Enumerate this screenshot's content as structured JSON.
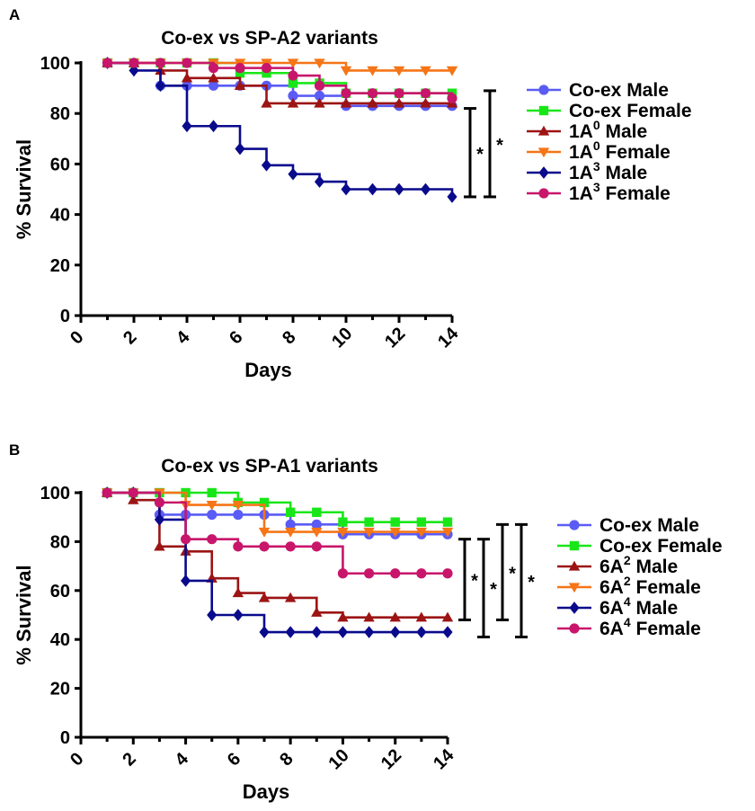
{
  "chart_data": [
    {
      "panel_label": "A",
      "type": "line",
      "step": true,
      "title": "Co-ex vs SP-A2 variants",
      "xlabel": "Days",
      "ylabel": "% Survival",
      "xlim": [
        0,
        14
      ],
      "ylim": [
        0,
        100
      ],
      "xticks": [
        "0",
        "2",
        "4",
        "6",
        "8",
        "10",
        "12",
        "14"
      ],
      "yticks": [
        "0",
        "20",
        "40",
        "60",
        "80",
        "100"
      ],
      "grid": false,
      "legend_position": "right",
      "x": [
        1,
        2,
        3,
        4,
        5,
        6,
        7,
        8,
        9,
        10,
        11,
        12,
        13,
        14
      ],
      "series": [
        {
          "name": "Co-ex Male",
          "base": "Co-ex",
          "sup": "",
          "rest": " Male",
          "color": "#5a5cf5",
          "marker": "circle",
          "values": [
            100,
            100,
            91,
            91,
            91,
            91,
            91,
            87,
            87,
            83,
            83,
            83,
            83,
            83
          ]
        },
        {
          "name": "Co-ex Female",
          "base": "Co-ex",
          "sup": "",
          "rest": " Female",
          "color": "#19e619",
          "marker": "square",
          "values": [
            100,
            100,
            100,
            100,
            100,
            96,
            96,
            92,
            92,
            88,
            88,
            88,
            88,
            88
          ]
        },
        {
          "name": "1A0 Male",
          "base": "1A",
          "sup": "0",
          "rest": " Male",
          "color": "#9c1414",
          "marker": "triangle-up",
          "values": [
            100,
            100,
            97,
            94,
            94,
            91,
            84,
            84,
            84,
            84,
            84,
            84,
            84,
            84
          ]
        },
        {
          "name": "1A0 Female",
          "base": "1A",
          "sup": "0",
          "rest": " Female",
          "color": "#f57517",
          "marker": "triangle-down",
          "values": [
            100,
            100,
            100,
            100,
            100,
            100,
            100,
            100,
            100,
            97,
            97,
            97,
            97,
            97
          ]
        },
        {
          "name": "1A3 Male",
          "base": "1A",
          "sup": "3",
          "rest": " Male",
          "color": "#0a0a8c",
          "marker": "diamond",
          "values": [
            100,
            97,
            91,
            75,
            75,
            66,
            59.5,
            56,
            53,
            50,
            50,
            50,
            50,
            47
          ]
        },
        {
          "name": "1A3 Female",
          "base": "1A",
          "sup": "3",
          "rest": " Female",
          "color": "#c8166b",
          "marker": "circle",
          "values": [
            100,
            100,
            100,
            100,
            98,
            98,
            98,
            95,
            91,
            88,
            88,
            88,
            88,
            86
          ]
        }
      ],
      "significance": [
        {
          "label": "*",
          "y_low": 47,
          "y_high": 82
        },
        {
          "label": "*",
          "y_low": 47,
          "y_high": 89
        }
      ]
    },
    {
      "panel_label": "B",
      "type": "line",
      "step": true,
      "title": "Co-ex vs SP-A1 variants",
      "xlabel": "Days",
      "ylabel": "% Survival",
      "xlim": [
        0,
        14
      ],
      "ylim": [
        0,
        100
      ],
      "xticks": [
        "0",
        "2",
        "4",
        "6",
        "8",
        "10",
        "12",
        "14"
      ],
      "yticks": [
        "0",
        "20",
        "40",
        "60",
        "80",
        "100"
      ],
      "grid": false,
      "legend_position": "right",
      "x": [
        1,
        2,
        3,
        4,
        5,
        6,
        7,
        8,
        9,
        10,
        11,
        12,
        13,
        14
      ],
      "series": [
        {
          "name": "Co-ex Male",
          "base": "Co-ex",
          "sup": "",
          "rest": " Male",
          "color": "#5a5cf5",
          "marker": "circle",
          "values": [
            100,
            100,
            91,
            91,
            91,
            91,
            91,
            87,
            87,
            83,
            83,
            83,
            83,
            83
          ]
        },
        {
          "name": "Co-ex Female",
          "base": "Co-ex",
          "sup": "",
          "rest": " Female",
          "color": "#19e619",
          "marker": "square",
          "values": [
            100,
            100,
            100,
            100,
            100,
            96,
            96,
            92,
            92,
            88,
            88,
            88,
            88,
            88
          ]
        },
        {
          "name": "6A2 Male",
          "base": "6A",
          "sup": "2",
          "rest": " Male",
          "color": "#9c1414",
          "marker": "triangle-up",
          "values": [
            100,
            97,
            78,
            76,
            65,
            59,
            57,
            57,
            51,
            49,
            49,
            49,
            49,
            49
          ]
        },
        {
          "name": "6A2 Female",
          "base": "6A",
          "sup": "2",
          "rest": " Female",
          "color": "#f57517",
          "marker": "triangle-down",
          "values": [
            100,
            100,
            100,
            95,
            95,
            95,
            84,
            84,
            84,
            84,
            84,
            84,
            84,
            84
          ]
        },
        {
          "name": "6A4 Male",
          "base": "6A",
          "sup": "4",
          "rest": " Male",
          "color": "#0a0a8c",
          "marker": "diamond",
          "values": [
            100,
            100,
            89,
            64,
            50,
            50,
            43,
            43,
            43,
            43,
            43,
            43,
            43,
            43
          ]
        },
        {
          "name": "6A4 Female",
          "base": "6A",
          "sup": "4",
          "rest": " Female",
          "color": "#c8166b",
          "marker": "circle",
          "values": [
            100,
            100,
            96,
            81,
            81,
            78,
            78,
            78,
            78,
            67,
            67,
            67,
            67,
            67
          ]
        }
      ],
      "significance": [
        {
          "label": "*",
          "y_low": 48,
          "y_high": 81
        },
        {
          "label": "*",
          "y_low": 41,
          "y_high": 81
        },
        {
          "label": "*",
          "y_low": 48,
          "y_high": 87
        },
        {
          "label": "*",
          "y_low": 41,
          "y_high": 87
        }
      ]
    }
  ]
}
